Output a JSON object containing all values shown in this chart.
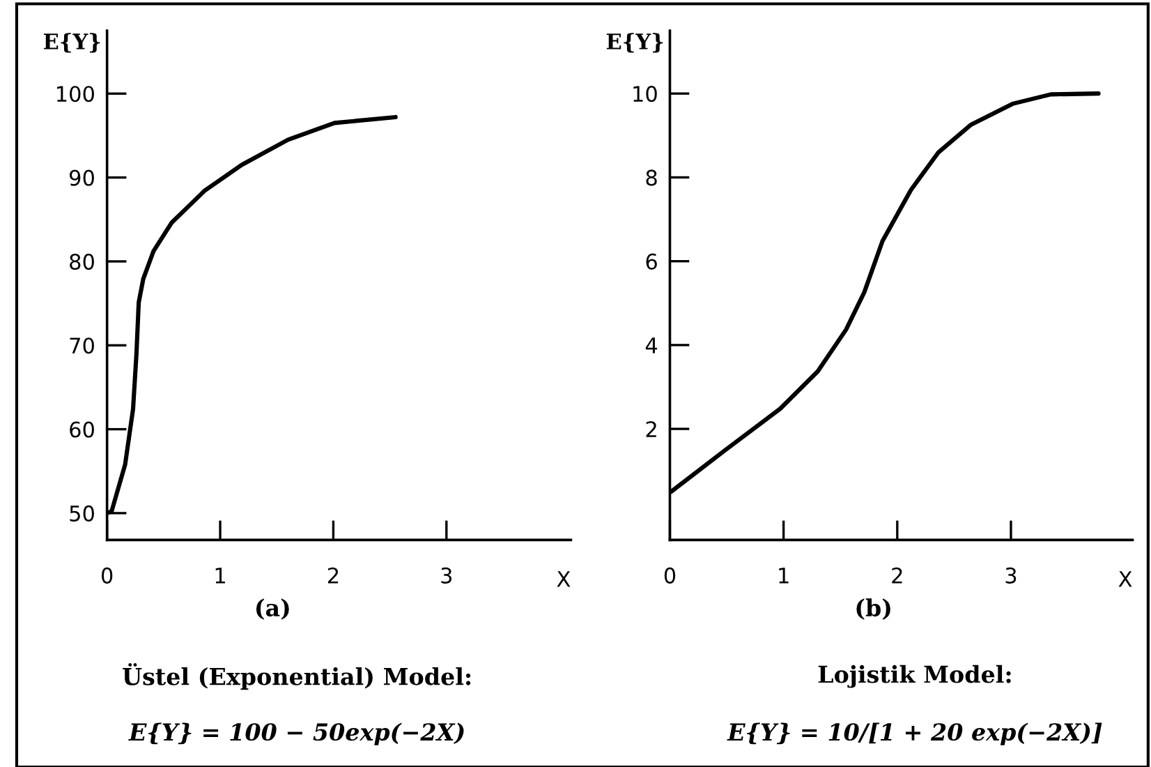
{
  "chart_data": [
    {
      "type": "line",
      "xlabel": "X",
      "ylabel": "E{Y}",
      "xlim": [
        0,
        4.1
      ],
      "xticks": [
        0,
        1,
        2,
        3
      ],
      "ylim": [
        46.8,
        107.5
      ],
      "yticks": [
        50,
        60,
        70,
        80,
        90,
        100
      ],
      "grid": false,
      "legend": false,
      "marker": "none",
      "line_style": "solid",
      "series": [
        {
          "color": "#000000",
          "x": [
            0.0,
            0.04,
            0.16,
            0.23,
            0.26,
            0.28,
            0.32,
            0.41,
            0.57,
            0.86,
            1.19,
            1.6,
            2.01,
            2.55
          ],
          "values": [
            50,
            50.2,
            55.8,
            62.4,
            69,
            75.1,
            77.9,
            81.2,
            84.6,
            88.4,
            91.5,
            94.5,
            96.5,
            97.2
          ]
        }
      ],
      "annotations": [
        "(a)",
        "Üstel (Exponential) Model:",
        "E{Y} = 100 − 50exp(−2X)"
      ]
    },
    {
      "type": "line",
      "xlabel": "X",
      "ylabel": "E{Y}",
      "xlim": [
        0,
        4.07
      ],
      "xticks": [
        0,
        1,
        2,
        3
      ],
      "ylim": [
        -0.65,
        11.5
      ],
      "yticks": [
        2,
        4,
        6,
        8,
        10
      ],
      "grid": false,
      "legend": false,
      "marker": "none",
      "line_style": "solid",
      "series": [
        {
          "color": "#000000",
          "x": [
            0.01,
            0.48,
            0.97,
            1.3,
            1.55,
            1.71,
            1.87,
            2.12,
            2.36,
            2.65,
            3.02,
            3.35,
            3.77
          ],
          "values": [
            0.5,
            1.48,
            2.48,
            3.37,
            4.37,
            5.26,
            6.48,
            7.7,
            8.59,
            9.26,
            9.76,
            9.98,
            10.0
          ]
        }
      ],
      "annotations": [
        "(b)",
        "Lojistik Model:",
        "E{Y} = 10/[1 + 20 exp(−2X)]"
      ]
    }
  ]
}
